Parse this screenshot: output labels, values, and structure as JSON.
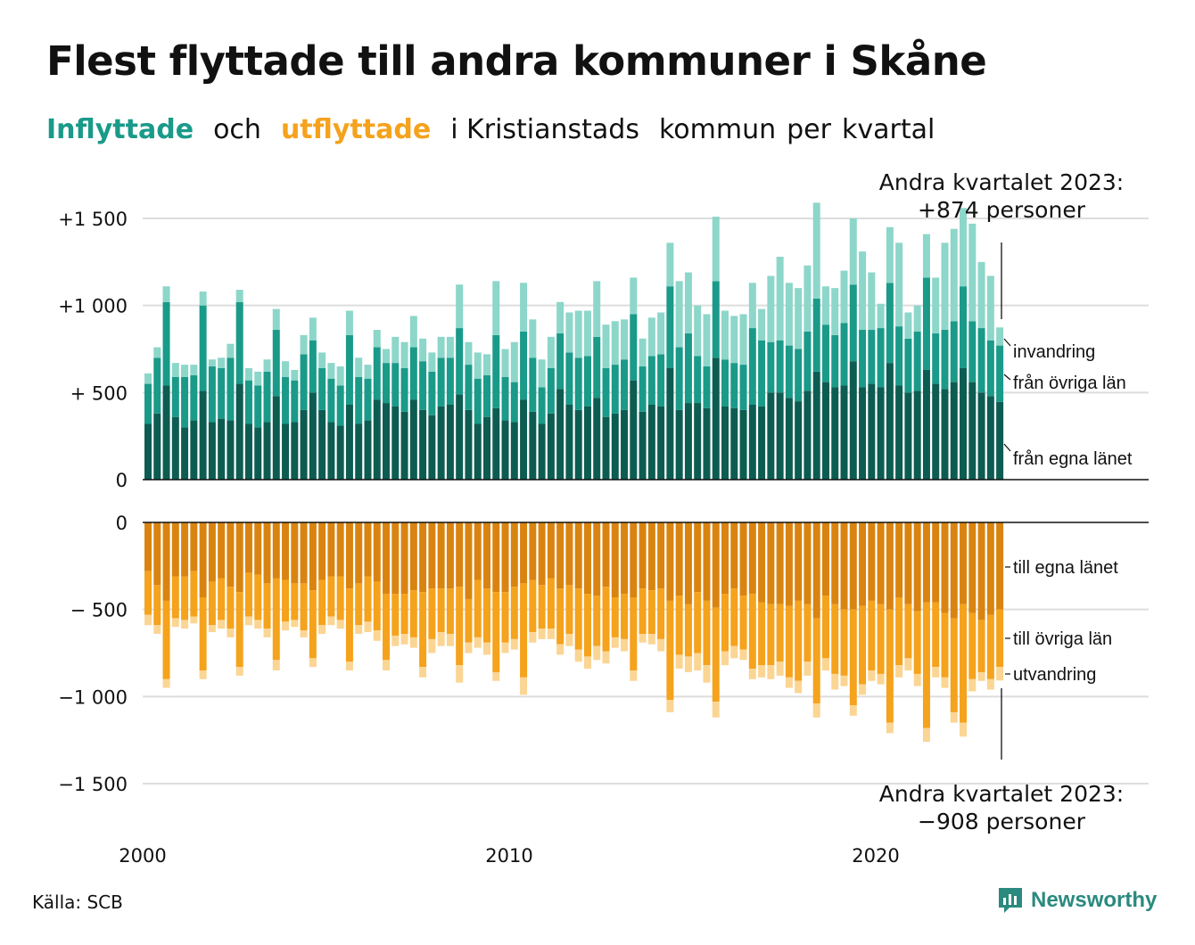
{
  "title": "Flest flyttade till andra kommuner i Skåne",
  "subtitle": {
    "part1": "Inflyttade",
    "part2": "och",
    "part3": "utflyttade",
    "part4": "i Kristianstads",
    "part5": "kommun",
    "part6": "per",
    "part7": "kvartal"
  },
  "source": "Källa: SCB",
  "brand": "Newsworthy",
  "colors": {
    "in_own": "#0d5c52",
    "in_other": "#1a9a89",
    "in_immigration": "#8dd6ca",
    "out_own": "#d98410",
    "out_other": "#f5a21c",
    "out_emigration": "#fbd593",
    "gridline": "#dddddd",
    "axis": "#111111"
  },
  "chart_data": {
    "type": "bar",
    "stacked": true,
    "x_unit": "quarter",
    "start": "2000 Q1",
    "end": "2023 Q2",
    "x_tick_labels": [
      "2000",
      "2010",
      "2020"
    ],
    "top_panel": {
      "y_tick_labels": [
        "0",
        "+  500",
        "+1 000",
        "+1 500"
      ],
      "ylim": [
        0,
        1500
      ],
      "series": [
        {
          "name": "från egna länet",
          "color_key": "in_own",
          "values": [
            320,
            380,
            540,
            360,
            300,
            340,
            510,
            330,
            350,
            340,
            550,
            320,
            300,
            330,
            480,
            320,
            330,
            400,
            500,
            400,
            330,
            310,
            430,
            320,
            340,
            460,
            440,
            420,
            390,
            460,
            400,
            370,
            420,
            430,
            490,
            400,
            320,
            360,
            410,
            340,
            330,
            460,
            390,
            320,
            380,
            520,
            430,
            400,
            420,
            470,
            360,
            380,
            400,
            570,
            390,
            430,
            420,
            640,
            400,
            440,
            440,
            410,
            700,
            420,
            410,
            400,
            430,
            420,
            500,
            500,
            470,
            450,
            510,
            620,
            560,
            530,
            540,
            680,
            530,
            550,
            530,
            670,
            540,
            500,
            510,
            630,
            550,
            520,
            560,
            640,
            560,
            500,
            480,
            447
          ]
        },
        {
          "name": "från övriga län",
          "color_key": "in_other",
          "values": [
            230,
            320,
            480,
            230,
            290,
            260,
            490,
            320,
            290,
            360,
            470,
            250,
            240,
            290,
            380,
            270,
            240,
            320,
            300,
            240,
            250,
            230,
            400,
            270,
            240,
            300,
            230,
            250,
            250,
            300,
            280,
            250,
            280,
            270,
            380,
            260,
            260,
            240,
            420,
            250,
            230,
            390,
            310,
            210,
            260,
            320,
            300,
            300,
            290,
            350,
            280,
            280,
            290,
            380,
            260,
            280,
            300,
            470,
            360,
            400,
            270,
            240,
            440,
            270,
            260,
            260,
            440,
            380,
            290,
            300,
            300,
            300,
            340,
            420,
            330,
            300,
            360,
            440,
            330,
            310,
            340,
            460,
            340,
            310,
            340,
            530,
            290,
            340,
            350,
            470,
            350,
            370,
            320,
            323
          ]
        },
        {
          "name": "invandring",
          "color_key": "in_immigration",
          "values": [
            60,
            60,
            90,
            80,
            70,
            60,
            80,
            40,
            60,
            80,
            70,
            70,
            80,
            70,
            120,
            90,
            60,
            110,
            130,
            90,
            90,
            110,
            140,
            110,
            80,
            100,
            80,
            150,
            150,
            180,
            130,
            110,
            120,
            120,
            250,
            130,
            150,
            120,
            310,
            160,
            230,
            280,
            220,
            160,
            180,
            180,
            230,
            270,
            260,
            320,
            250,
            250,
            230,
            210,
            160,
            220,
            240,
            250,
            380,
            350,
            290,
            300,
            370,
            280,
            270,
            290,
            260,
            180,
            380,
            480,
            360,
            350,
            380,
            550,
            220,
            270,
            300,
            380,
            450,
            330,
            140,
            320,
            480,
            150,
            150,
            250,
            320,
            500,
            530,
            450,
            560,
            380,
            370,
            104
          ]
        }
      ],
      "annotation": {
        "line1": "Andra kvartalet 2023:",
        "line2": "+874 personer"
      },
      "series_labels": [
        "invandring",
        "från övriga län",
        "från egna länet"
      ]
    },
    "bottom_panel": {
      "y_tick_labels": [
        "0",
        "−  500",
        "−1 000",
        "−1 500"
      ],
      "ylim": [
        -1500,
        0
      ],
      "series": [
        {
          "name": "till egna länet",
          "color_key": "out_own",
          "values": [
            280,
            360,
            450,
            310,
            310,
            280,
            430,
            340,
            320,
            370,
            400,
            290,
            300,
            350,
            320,
            330,
            350,
            350,
            390,
            330,
            310,
            310,
            380,
            350,
            310,
            340,
            410,
            410,
            410,
            390,
            400,
            380,
            380,
            380,
            370,
            440,
            330,
            380,
            400,
            400,
            370,
            350,
            330,
            360,
            320,
            380,
            360,
            380,
            410,
            420,
            370,
            430,
            410,
            430,
            380,
            390,
            380,
            450,
            420,
            470,
            400,
            450,
            490,
            410,
            380,
            420,
            410,
            460,
            470,
            470,
            480,
            450,
            470,
            550,
            420,
            470,
            500,
            500,
            480,
            450,
            470,
            500,
            430,
            470,
            510,
            460,
            460,
            520,
            550,
            470,
            520,
            560,
            530,
            500
          ]
        },
        {
          "name": "till övriga län",
          "color_key": "out_other",
          "values": [
            250,
            230,
            450,
            240,
            250,
            260,
            420,
            250,
            240,
            240,
            430,
            250,
            260,
            260,
            470,
            240,
            210,
            270,
            390,
            260,
            230,
            250,
            420,
            240,
            260,
            280,
            380,
            240,
            230,
            270,
            430,
            290,
            250,
            260,
            450,
            250,
            330,
            310,
            460,
            290,
            300,
            540,
            300,
            250,
            290,
            320,
            280,
            350,
            360,
            290,
            370,
            230,
            260,
            420,
            260,
            250,
            290,
            570,
            340,
            300,
            350,
            370,
            540,
            330,
            330,
            310,
            430,
            360,
            350,
            330,
            410,
            460,
            330,
            490,
            360,
            400,
            380,
            550,
            450,
            400,
            400,
            650,
            390,
            310,
            360,
            720,
            370,
            370,
            540,
            680,
            380,
            300,
            370,
            330
          ]
        },
        {
          "name": "utvandring",
          "color_key": "out_emigration",
          "values": [
            60,
            50,
            50,
            50,
            50,
            40,
            50,
            40,
            50,
            50,
            50,
            50,
            50,
            50,
            60,
            50,
            40,
            40,
            50,
            50,
            50,
            50,
            50,
            50,
            60,
            60,
            60,
            60,
            60,
            60,
            60,
            80,
            80,
            70,
            100,
            60,
            60,
            70,
            50,
            60,
            60,
            100,
            60,
            60,
            60,
            60,
            70,
            70,
            70,
            80,
            70,
            60,
            70,
            60,
            50,
            60,
            70,
            70,
            80,
            90,
            100,
            100,
            90,
            80,
            70,
            60,
            60,
            70,
            80,
            80,
            60,
            70,
            80,
            80,
            70,
            90,
            60,
            60,
            60,
            60,
            60,
            60,
            70,
            70,
            70,
            80,
            60,
            60,
            60,
            80,
            70,
            50,
            60,
            78
          ]
        }
      ],
      "annotation": {
        "line1": "Andra kvartalet 2023:",
        "line2": "−908 personer"
      },
      "series_labels": [
        "till egna länet",
        "till övriga län",
        "utvandring"
      ]
    }
  }
}
